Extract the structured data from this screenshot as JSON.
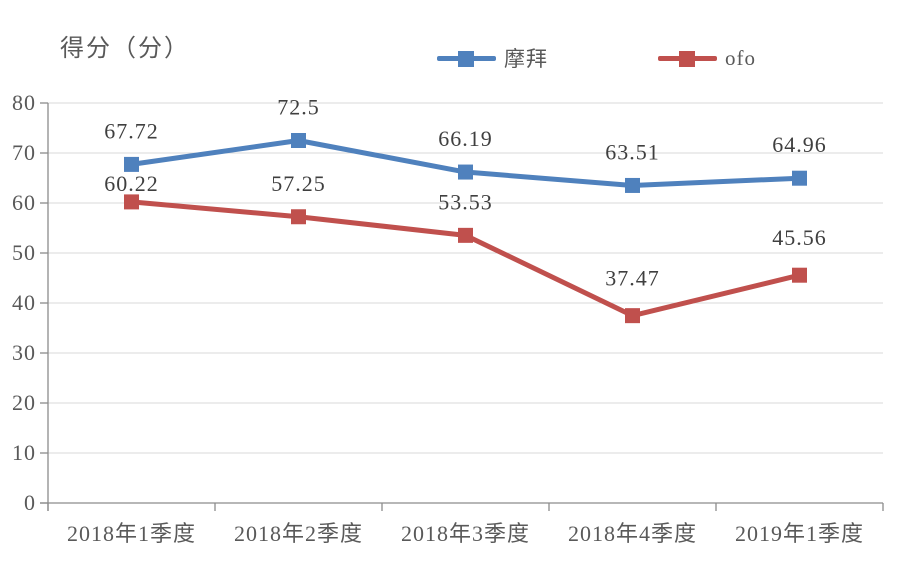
{
  "chart_data": {
    "type": "line",
    "title": "得分（分）",
    "categories": [
      "2018年1季度",
      "2018年2季度",
      "2018年3季度",
      "2018年4季度",
      "2019年1季度"
    ],
    "series": [
      {
        "name": "摩拜",
        "color": "#4F81BD",
        "values": [
          67.72,
          72.5,
          66.19,
          63.51,
          64.96
        ],
        "labels": [
          "67.72",
          "72.5",
          "66.19",
          "63.51",
          "64.96"
        ]
      },
      {
        "name": "ofo",
        "color": "#C0504D",
        "values": [
          60.22,
          57.25,
          53.53,
          37.47,
          45.56
        ],
        "labels": [
          "60.22",
          "57.25",
          "53.53",
          "37.47",
          "45.56"
        ]
      }
    ],
    "xlabel": "",
    "ylabel": "得分（分）",
    "ylim": [
      0,
      80
    ],
    "ytick_step": 10,
    "yticks": [
      0,
      10,
      20,
      30,
      40,
      50,
      60,
      70,
      80
    ],
    "grid": true,
    "legend_position": "top",
    "marker": "square",
    "colors": {
      "grid": "#D9D9D9",
      "axis": "#8C8C8C",
      "tick_text": "#595959",
      "data_label_text": "#3F3F3F",
      "title_text": "#595959"
    }
  }
}
